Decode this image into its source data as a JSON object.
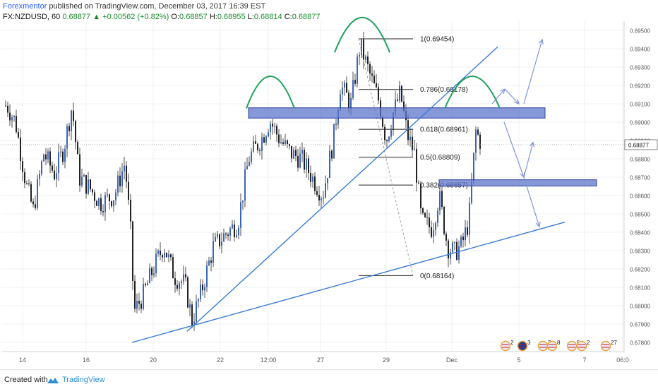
{
  "header": {
    "author": "Forexmentor",
    "published": "published on TradingView.com, December 03, 2017 16:39 EST",
    "symbol": "FX:NZDUSD, 60",
    "last": "0.68877",
    "change": "+0.00562 (+0.82%)",
    "o_label": "O:",
    "o": "0.68857",
    "h_label": "H:",
    "h": "0.68955",
    "l_label": "L:",
    "l": "0.68814",
    "c_label": "C:",
    "c": "0.68877"
  },
  "footer": {
    "created_with": "Created with",
    "brand": "TradingView"
  },
  "colors": {
    "candle": "#222222",
    "wick_blue": "#3b66b8",
    "trendline": "#3a7bd5",
    "zone_fill": "#5d76c9",
    "arc": "#1fa05a",
    "price_tag_bg": "#ffffff"
  },
  "chart_data": {
    "type": "candlestick",
    "instrument": "FX:NZDUSD",
    "timeframe": "60",
    "ylim": [
      0.6775,
      0.6955
    ],
    "y_ticks": [
      "0.69500",
      "0.69400",
      "0.69300",
      "0.69200",
      "0.69100",
      "0.69000",
      "0.68900",
      "0.68800",
      "0.68700",
      "0.68600",
      "0.68500",
      "0.68400",
      "0.68300",
      "0.68200",
      "0.68100",
      "0.68000",
      "0.67900",
      "0.67800"
    ],
    "current_price_label": "0.68877",
    "x_ticks": [
      "14",
      "16",
      "20",
      "22",
      "12:00",
      "27",
      "29",
      "Dec",
      "5",
      "7",
      "06:0"
    ],
    "x_tick_index": [
      30,
      120,
      215,
      310,
      378,
      452,
      545,
      638,
      733,
      826,
      880
    ],
    "closes_approx": [
      {
        "i": 8,
        "v": 0.6909
      },
      {
        "i": 20,
        "v": 0.69
      },
      {
        "i": 35,
        "v": 0.6866
      },
      {
        "i": 45,
        "v": 0.6852
      },
      {
        "i": 60,
        "v": 0.6883
      },
      {
        "i": 75,
        "v": 0.6872
      },
      {
        "i": 88,
        "v": 0.6885
      },
      {
        "i": 100,
        "v": 0.6909
      },
      {
        "i": 110,
        "v": 0.687
      },
      {
        "i": 125,
        "v": 0.6864
      },
      {
        "i": 140,
        "v": 0.6856
      },
      {
        "i": 160,
        "v": 0.686
      },
      {
        "i": 175,
        "v": 0.6878
      },
      {
        "i": 183,
        "v": 0.684
      },
      {
        "i": 188,
        "v": 0.6797
      },
      {
        "i": 200,
        "v": 0.6805
      },
      {
        "i": 215,
        "v": 0.682
      },
      {
        "i": 230,
        "v": 0.6833
      },
      {
        "i": 245,
        "v": 0.6816
      },
      {
        "i": 260,
        "v": 0.6812
      },
      {
        "i": 270,
        "v": 0.6792
      },
      {
        "i": 282,
        "v": 0.6806
      },
      {
        "i": 300,
        "v": 0.6832
      },
      {
        "i": 320,
        "v": 0.684
      },
      {
        "i": 335,
        "v": 0.6845
      },
      {
        "i": 350,
        "v": 0.688
      },
      {
        "i": 370,
        "v": 0.6892
      },
      {
        "i": 380,
        "v": 0.6901
      },
      {
        "i": 395,
        "v": 0.689
      },
      {
        "i": 410,
        "v": 0.6883
      },
      {
        "i": 425,
        "v": 0.688
      },
      {
        "i": 440,
        "v": 0.687
      },
      {
        "i": 455,
        "v": 0.686
      },
      {
        "i": 470,
        "v": 0.689
      },
      {
        "i": 480,
        "v": 0.692
      },
      {
        "i": 495,
        "v": 0.691
      },
      {
        "i": 508,
        "v": 0.6942
      },
      {
        "i": 520,
        "v": 0.6928
      },
      {
        "i": 535,
        "v": 0.6911
      },
      {
        "i": 545,
        "v": 0.689
      },
      {
        "i": 555,
        "v": 0.6905
      },
      {
        "i": 565,
        "v": 0.6916
      },
      {
        "i": 575,
        "v": 0.6893
      },
      {
        "i": 585,
        "v": 0.6883
      },
      {
        "i": 595,
        "v": 0.6846
      },
      {
        "i": 610,
        "v": 0.6842
      },
      {
        "i": 620,
        "v": 0.686
      },
      {
        "i": 632,
        "v": 0.6832
      },
      {
        "i": 642,
        "v": 0.6829
      },
      {
        "i": 652,
        "v": 0.6833
      },
      {
        "i": 662,
        "v": 0.6846
      },
      {
        "i": 672,
        "v": 0.6895
      },
      {
        "i": 680,
        "v": 0.6888
      }
    ],
    "fibonacci": {
      "levels": [
        {
          "ratio": "1",
          "value": 0.69454,
          "label": "1(0.69454)"
        },
        {
          "ratio": "0.786",
          "value": 0.69178,
          "label": "0.786(0.69178)"
        },
        {
          "ratio": "0.618",
          "value": 0.68961,
          "label": "0.618(0.68961)"
        },
        {
          "ratio": "0.5",
          "value": 0.68809,
          "label": "0.5(0.68809)"
        },
        {
          "ratio": "0.382",
          "value": 0.68657,
          "label": "0.382(0.68657)"
        },
        {
          "ratio": "0",
          "value": 0.68164,
          "label": "0(0.68164)"
        }
      ]
    },
    "zones": [
      {
        "name": "resistance zone",
        "from": 0.69022,
        "to": 0.69078
      },
      {
        "name": "support zone",
        "from": 0.68652,
        "to": 0.68686
      }
    ],
    "events_strip": [
      {
        "flag": "US",
        "count": "2"
      },
      {
        "flag": "AU",
        "count": "3"
      },
      {
        "flag": "NZ",
        "count": "2"
      },
      {
        "flag": "US",
        "count": "8"
      },
      {
        "flag": "US",
        "count": "5"
      },
      {
        "flag": "US",
        "count": "2"
      },
      {
        "flag": "US",
        "count": "27"
      }
    ],
    "annotations": [
      "left shoulder arc",
      "head arc",
      "right shoulder arc",
      "rising trendline",
      "support trendline",
      "projected arrows"
    ],
    "grid": true,
    "legend": "none"
  }
}
